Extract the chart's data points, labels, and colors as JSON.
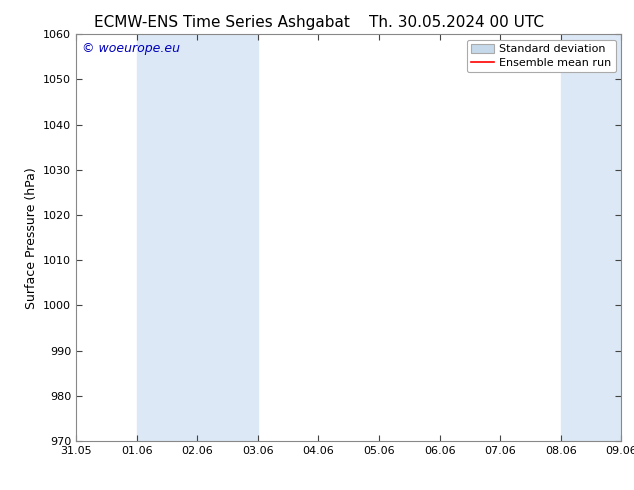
{
  "title_left": "ECMW-ENS Time Series Ashgabat",
  "title_right": "Th. 30.05.2024 00 UTC",
  "ylabel": "Surface Pressure (hPa)",
  "ylim": [
    970,
    1060
  ],
  "yticks": [
    970,
    980,
    990,
    1000,
    1010,
    1020,
    1030,
    1040,
    1050,
    1060
  ],
  "xtick_labels": [
    "31.05",
    "01.06",
    "02.06",
    "03.06",
    "04.06",
    "05.06",
    "06.06",
    "07.06",
    "08.06",
    "09.06"
  ],
  "xtick_positions": [
    0,
    1,
    2,
    3,
    4,
    5,
    6,
    7,
    8,
    9
  ],
  "background_color": "#ffffff",
  "plot_bg_color": "#ffffff",
  "shaded_regions": [
    {
      "x_start": 1,
      "x_end": 3,
      "color": "#dce8f5"
    },
    {
      "x_start": 8,
      "x_end": 9,
      "color": "#dce8f5"
    }
  ],
  "watermark_text": "© woeurope.eu",
  "watermark_color": "#0000bb",
  "legend_std_label": "Standard deviation",
  "legend_mean_label": "Ensemble mean run",
  "legend_std_facecolor": "#c5d9ea",
  "legend_std_edgecolor": "#aaaaaa",
  "legend_mean_color": "#ff0000",
  "title_fontsize": 11,
  "ylabel_fontsize": 9,
  "tick_fontsize": 8,
  "watermark_fontsize": 9,
  "legend_fontsize": 8,
  "spine_color": "#888888",
  "tick_color": "#444444"
}
